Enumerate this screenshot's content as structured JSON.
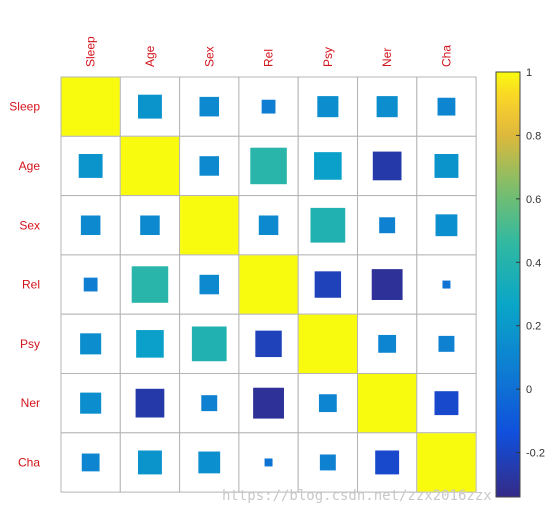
{
  "chart_data": {
    "type": "heatmap",
    "subtype": "correlation-matrix (square size and color = correlation)",
    "labels": [
      "Sleep",
      "Age",
      "Sex",
      "Rel",
      "Psy",
      "Ner",
      "Cha"
    ],
    "values": [
      [
        1.0,
        0.18,
        0.12,
        0.06,
        0.14,
        0.14,
        0.1
      ],
      [
        0.18,
        1.0,
        0.12,
        0.42,
        0.24,
        -0.26,
        0.18
      ],
      [
        0.12,
        0.12,
        1.0,
        0.12,
        0.38,
        0.08,
        0.15
      ],
      [
        0.06,
        0.42,
        0.12,
        1.0,
        -0.22,
        -0.3,
        0.02
      ],
      [
        0.14,
        0.24,
        0.38,
        -0.22,
        1.0,
        0.1,
        0.08
      ],
      [
        0.14,
        -0.26,
        0.08,
        -0.3,
        0.1,
        1.0,
        -0.18
      ],
      [
        0.1,
        0.18,
        0.15,
        0.02,
        0.08,
        -0.18,
        1.0
      ]
    ],
    "colorbar": {
      "ticks": [
        1,
        0.8,
        0.6,
        0.4,
        0.2,
        0,
        -0.2
      ],
      "tick_labels": [
        "1",
        "0.8",
        "0.6",
        "0.4",
        "0.2",
        "0",
        "-0.2"
      ],
      "range": [
        -0.34,
        1
      ],
      "colormap": "parula"
    },
    "grid": true
  },
  "watermark": "https://blog.csdn.net/zzx2016zzx",
  "colors": {
    "label": "#d4141c",
    "grid": "#b4b4b4"
  }
}
